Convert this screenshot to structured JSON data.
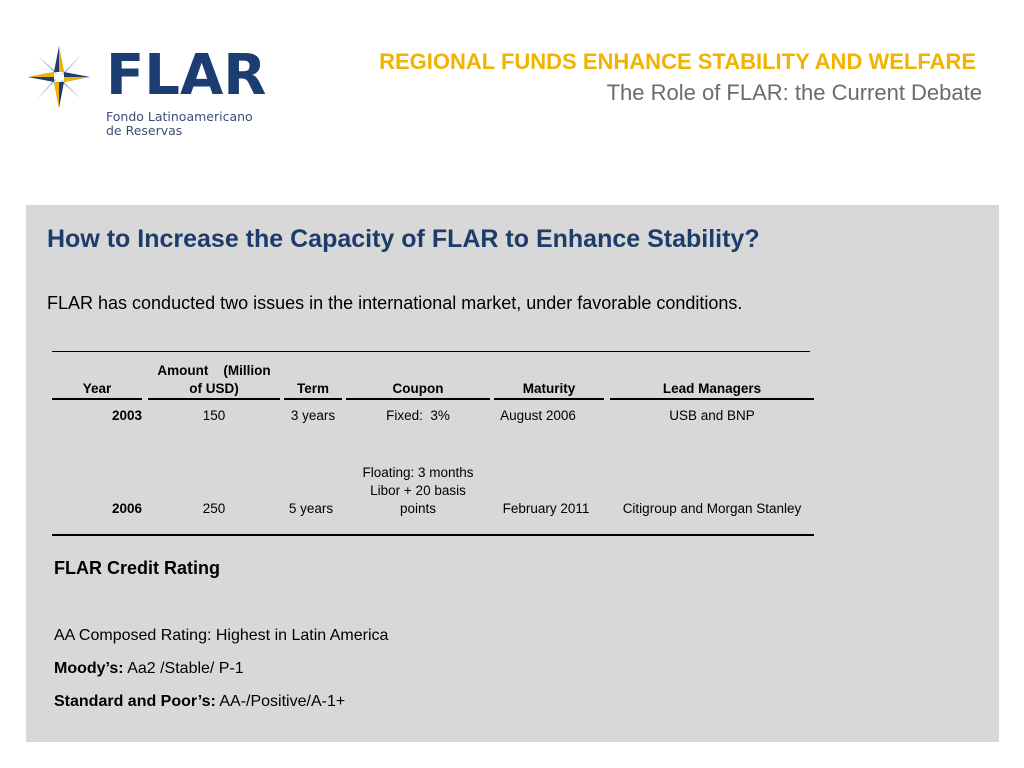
{
  "logo": {
    "wordmark": "FLAR",
    "subtitle_line1": "Fondo Latinoamericano",
    "subtitle_line2": "de Reservas",
    "icon": "compass-star-icon",
    "colors": {
      "navy": "#1b3d72",
      "gold": "#f1b300",
      "light_blue": "#8bb4d9"
    }
  },
  "header": {
    "title": "REGIONAL FUNDS ENHANCE STABILITY AND WELFARE",
    "subtitle": "The Role of FLAR: the Current Debate"
  },
  "content": {
    "question": "How to Increase the Capacity of FLAR to Enhance Stability?",
    "intro": "FLAR has conducted two issues in the international market, under favorable conditions."
  },
  "table": {
    "headers": {
      "year": "Year",
      "amount_line1": "Amount    (Million",
      "amount_line2": "of USD)",
      "term": "Term",
      "coupon": "Coupon",
      "maturity": "Maturity",
      "lead_managers": "Lead Managers"
    },
    "rows": [
      {
        "year": "2003",
        "amount": "150",
        "term": "3 years",
        "coupon_line1": "Fixed:  3%",
        "coupon_line2": "",
        "coupon_line3": "",
        "maturity": "August 2006",
        "lead_managers": "USB and BNP"
      },
      {
        "year": "2006",
        "amount": "250",
        "term": "5 years",
        "coupon_line1": "Floating: 3 months",
        "coupon_line2": "Libor + 20 basis",
        "coupon_line3": "points",
        "maturity": "February 2011",
        "lead_managers": "Citigroup and Morgan Stanley"
      }
    ]
  },
  "rating": {
    "title": "FLAR Credit Rating",
    "composed": "AA Composed Rating: Highest in Latin America",
    "moodys_label": "Moody’s:",
    "moodys_value": " Aa2 /Stable/ P-1",
    "sp_label": "Standard and Poor’s:",
    "sp_value": " AA-/Positive/A-1+"
  }
}
